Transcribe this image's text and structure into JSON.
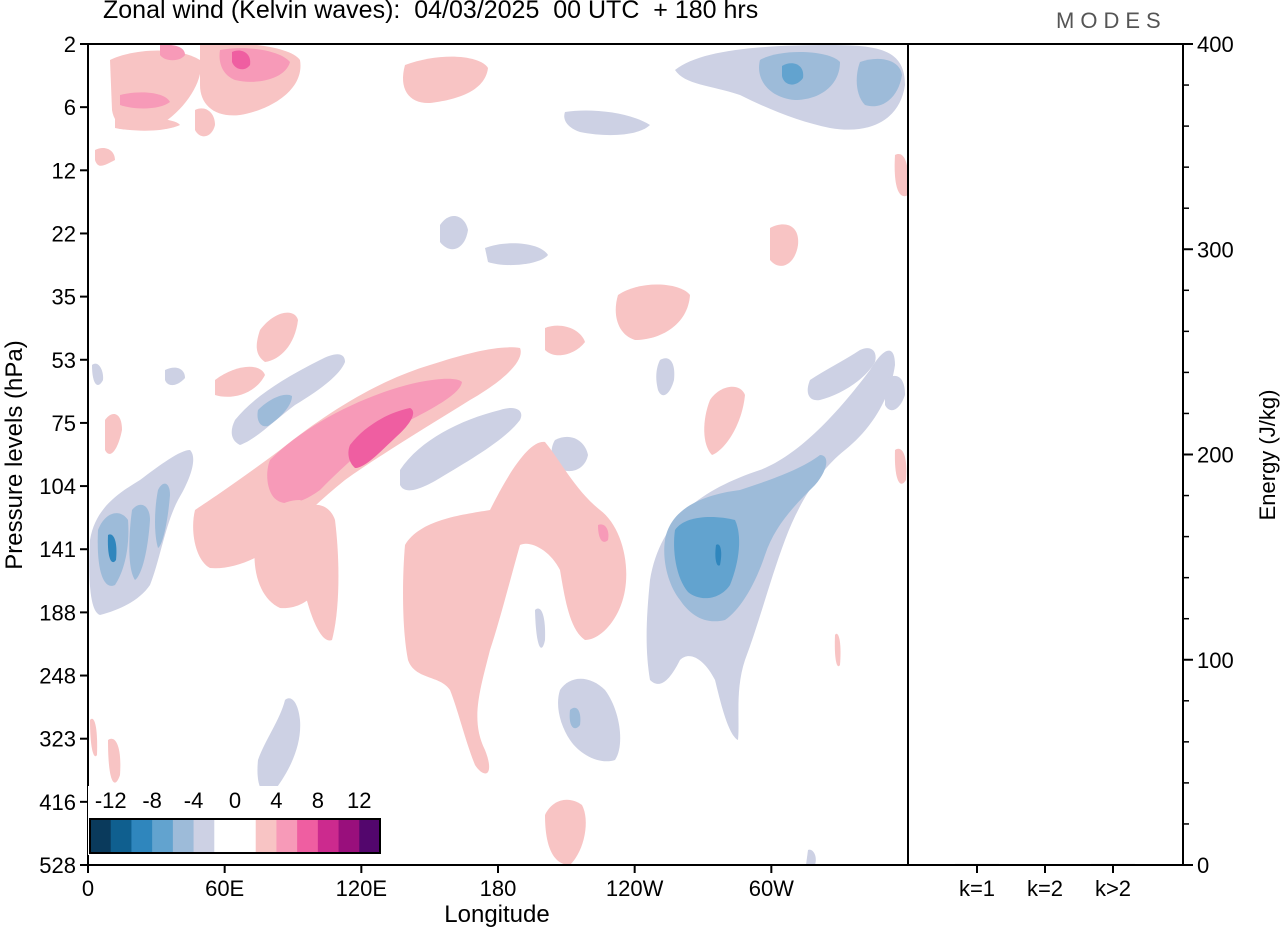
{
  "title": "Zonal wind (Kelvin waves):  04/03/2025  00 UTC  + 180 hrs",
  "brand": "MODES",
  "chart_data": [
    {
      "type": "heatmap",
      "title": "Zonal wind (Kelvin waves):  04/03/2025  00 UTC  + 180 hrs",
      "xlabel": "Longitude",
      "ylabel": "Pressure levels (hPa)",
      "x_ticks": [
        "0",
        "60E",
        "120E",
        "180",
        "120W",
        "60W"
      ],
      "y_ticks": [
        "2",
        "6",
        "12",
        "22",
        "35",
        "53",
        "75",
        "104",
        "141",
        "188",
        "248",
        "323",
        "416",
        "528"
      ],
      "y_scale": "pressure levels (inverted)",
      "grid": false,
      "colorbar": {
        "labels": [
          "-12",
          "-8",
          "-4",
          "0",
          "4",
          "8",
          "12"
        ],
        "colors": [
          "#0a3a5c",
          "#0f5f8f",
          "#2f86bd",
          "#62a3cf",
          "#9dbbd9",
          "#cdd1e4",
          "#ffffff",
          "#ffffff",
          "#f8c4c4",
          "#f79ab8",
          "#ef5ea1",
          "#cc2a8e",
          "#990f7c",
          "#53066d"
        ]
      },
      "features": [
        {
          "sign": "positive",
          "lon_range": "60E-140E",
          "level_range": "53-188",
          "peak": "+8 to +12",
          "description_level": "75-141"
        },
        {
          "sign": "positive",
          "lon_range": "150E-210E",
          "level_range": "104-416"
        },
        {
          "sign": "negative",
          "lon_range": "130W-80W",
          "level_range": "104-248",
          "peak": "-8 to -12"
        },
        {
          "sign": "negative",
          "lon_range": "0-40E",
          "level_range": "104-188",
          "peak": "-8 to -12"
        },
        {
          "sign": "positive",
          "lon_range": "10E-90E",
          "level_range": "2-12"
        },
        {
          "sign": "negative",
          "lon_range": "90W-0",
          "level_range": "2-12",
          "peak": "-8"
        }
      ]
    },
    {
      "type": "bar",
      "ylabel": "Energy (J/kg)",
      "categories": [
        "k=1",
        "k=2",
        "k>2"
      ],
      "values": [
        0.5,
        0.2,
        0.5
      ],
      "ylim": [
        0,
        400
      ],
      "y_ticks": [
        0,
        100,
        200,
        300,
        400
      ],
      "grid": false
    }
  ]
}
